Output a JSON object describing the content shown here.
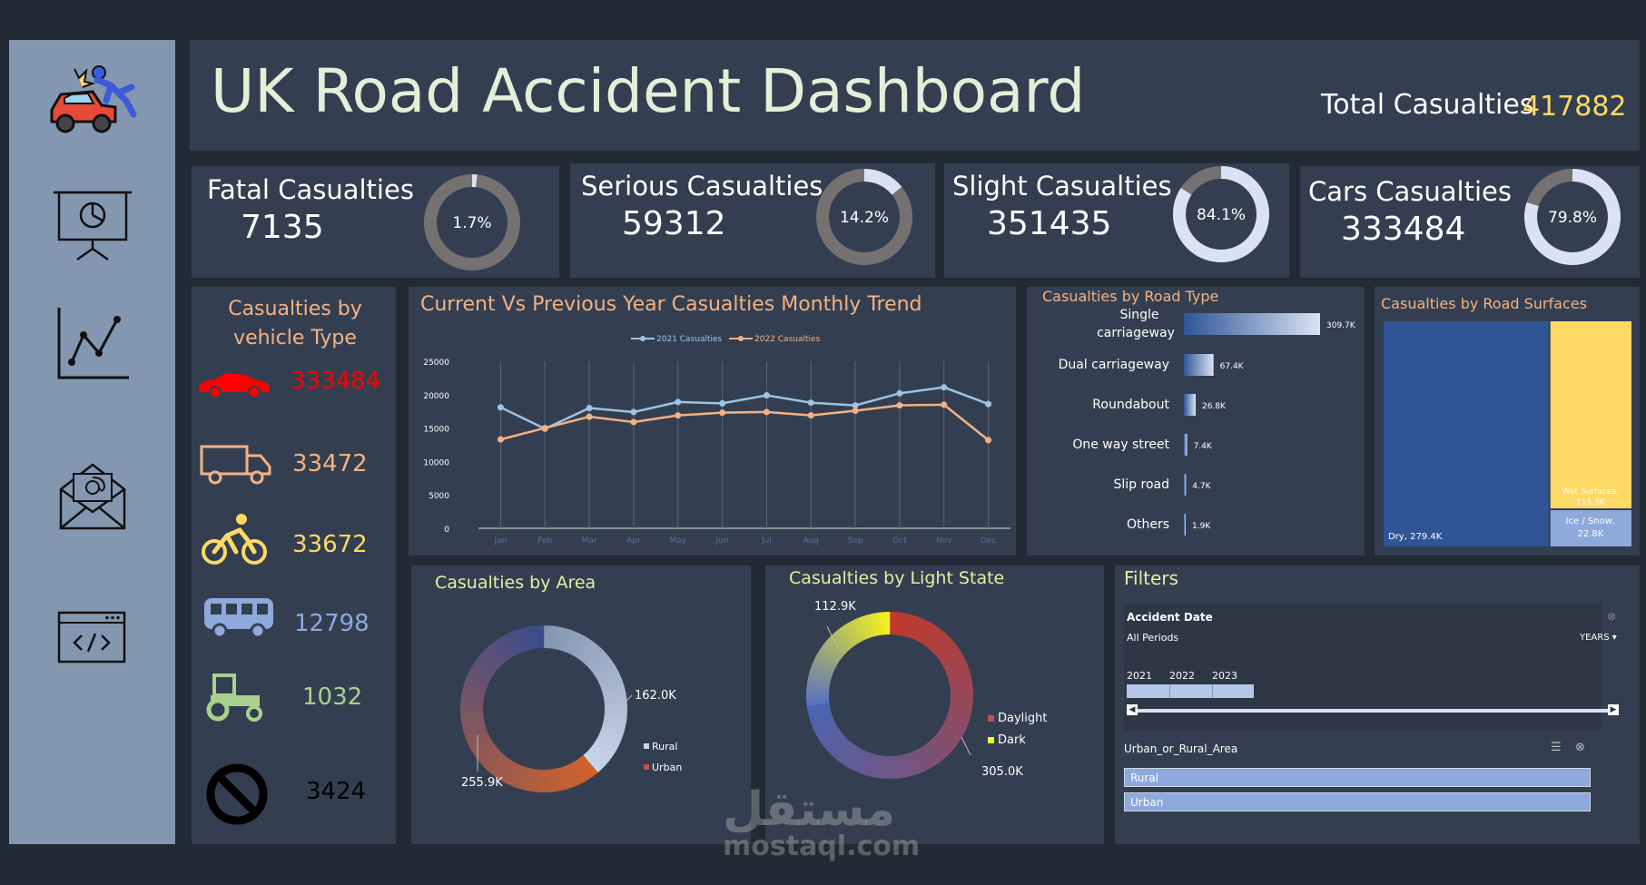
{
  "header": {
    "title": "UK Road Accident Dashboard",
    "total_label": "Total Casualties",
    "total_value": "417882"
  },
  "kpis": [
    {
      "label": "Fatal Casualties",
      "value": "7135",
      "pct_text": "1.7%",
      "pct": 0.017
    },
    {
      "label": "Serious Casualties",
      "value": "59312",
      "pct_text": "14.2%",
      "pct": 0.142
    },
    {
      "label": "Slight Casualties",
      "value": "351435",
      "pct_text": "84.1%",
      "pct": 0.841
    },
    {
      "label": "Cars Casualties",
      "value": "333484",
      "pct_text": "79.8%",
      "pct": 0.798
    }
  ],
  "sidebar": {
    "icons": [
      "accident-icon",
      "presentation-icon",
      "line-chart-icon",
      "email-icon",
      "code-window-icon"
    ]
  },
  "vehicle": {
    "title": "Casualties by vehicle Type",
    "items": [
      {
        "icon": "car-icon",
        "value": "333484",
        "color": "#ff0000"
      },
      {
        "icon": "truck-icon",
        "value": "33472",
        "color": "#f4b183"
      },
      {
        "icon": "bicycle-icon",
        "value": "33672",
        "color": "#ffd966"
      },
      {
        "icon": "bus-icon",
        "value": "12798",
        "color": "#8ea9db"
      },
      {
        "icon": "tractor-icon",
        "value": "1032",
        "color": "#a9d18e"
      },
      {
        "icon": "no-entry-icon",
        "value": "3424",
        "color": "#000000"
      }
    ]
  },
  "charts": {
    "trend": {
      "title": "Current Vs Previous Year Casualties  Monthly Trend",
      "type": "line",
      "x": [
        "Jan",
        "Feb",
        "Mar",
        "Apr",
        "May",
        "Jun",
        "Jul",
        "Aug",
        "Sep",
        "Oct",
        "Nov",
        "Dec"
      ],
      "ylim": [
        0,
        25000
      ],
      "yticks": [
        "25000",
        "20000",
        "15000",
        "10000",
        "5000",
        "0"
      ],
      "series": [
        {
          "name": "2021 Casualties",
          "color": "#9dc3e6",
          "values": [
            18100,
            14900,
            18000,
            17400,
            18900,
            18700,
            19900,
            18800,
            18400,
            20200,
            21100,
            18600
          ]
        },
        {
          "name": "2022 Casualties",
          "color": "#f4b183",
          "values": [
            13300,
            15000,
            16700,
            15900,
            16900,
            17300,
            17400,
            16900,
            17600,
            18400,
            18500,
            13200
          ]
        }
      ]
    },
    "road_type": {
      "title": "Casualties  by Road Type",
      "type": "bar",
      "categories": [
        "Single carriageway",
        "Dual carriageway",
        "Roundabout",
        "One way street",
        "Slip road",
        "Others"
      ],
      "values": [
        309.7,
        67.4,
        26.8,
        7.4,
        4.7,
        1.9
      ],
      "labels": [
        "309.7K",
        "67.4K",
        "26.8K",
        "7.4K",
        "4.7K",
        "1.9K"
      ]
    },
    "road_surface": {
      "title": "Casualties  by Road Surfaces",
      "type": "treemap",
      "items": [
        {
          "name": "Dry",
          "value": 279.4,
          "label": "Dry, 279.4K",
          "color": "#2f5597"
        },
        {
          "name": "Wet Surfaces",
          "value": 115.3,
          "label_name": "Wet Surfaces,",
          "label_value": "115.3K",
          "color": "#ffd966"
        },
        {
          "name": "Ice / Snow",
          "value": 22.8,
          "label_name": "Ice / Snow,",
          "label_value": "22.8K",
          "color": "#8ea9db"
        }
      ]
    },
    "area": {
      "title": "Casualties  by Area",
      "type": "pie",
      "slices": [
        {
          "name": "Rural",
          "value": 162.0,
          "label": "162.0K"
        },
        {
          "name": "Urban",
          "value": 255.9,
          "label": "255.9K"
        }
      ]
    },
    "light": {
      "title": "Casualties  by Light State",
      "type": "pie",
      "slices": [
        {
          "name": "Daylight",
          "value": 305.0,
          "label": "305.0K"
        },
        {
          "name": "Dark",
          "value": 112.9,
          "label": "112.9K"
        }
      ]
    }
  },
  "filters": {
    "title": "Filters",
    "date_label": "Accident Date",
    "period": "All Periods",
    "years_label": "YEARS",
    "years": [
      "2021",
      "2022",
      "2023"
    ],
    "area_label": "Urban_or_Rural_Area",
    "options": [
      "Rural",
      "Urban"
    ]
  },
  "watermark": {
    "arabic": "مستقل",
    "latin": "mostaql.com"
  }
}
